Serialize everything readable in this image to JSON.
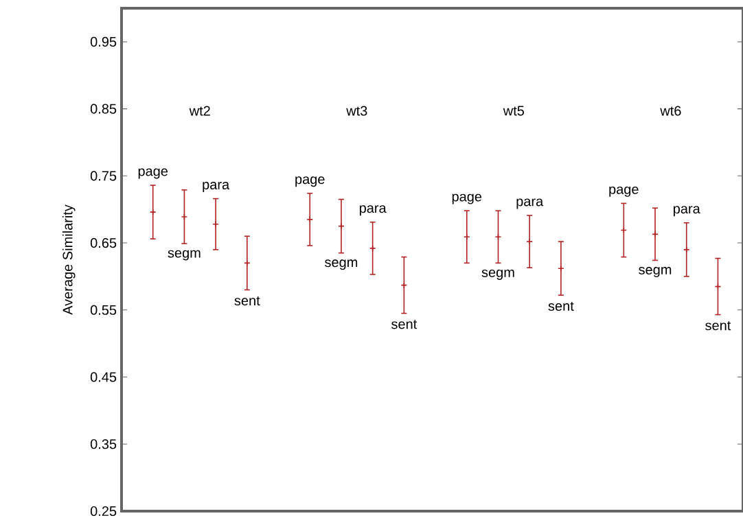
{
  "chart_data": {
    "type": "scatter",
    "ylabel": "Average Similarity",
    "categories": [
      "wt2",
      "wt3",
      "wt5",
      "wt6"
    ],
    "ylim": [
      0.25,
      1.0
    ],
    "yticks": [
      0.25,
      0.35,
      0.45,
      0.55,
      0.65,
      0.75,
      0.85,
      0.95
    ],
    "marker": "cross",
    "legend": false,
    "series": [
      {
        "name": "page",
        "color": "#b22222",
        "values": [
          0.696,
          0.685,
          0.659,
          0.669
        ],
        "errors": [
          0.04,
          0.039,
          0.039,
          0.04
        ]
      },
      {
        "name": "segm",
        "color": "#b22222",
        "values": [
          0.689,
          0.675,
          0.659,
          0.663
        ],
        "errors": [
          0.04,
          0.04,
          0.039,
          0.039
        ]
      },
      {
        "name": "para",
        "color": "#b22222",
        "values": [
          0.678,
          0.642,
          0.652,
          0.64
        ],
        "errors": [
          0.038,
          0.039,
          0.039,
          0.04
        ]
      },
      {
        "name": "sent",
        "color": "#b22222",
        "values": [
          0.62,
          0.587,
          0.612,
          0.585
        ],
        "errors": [
          0.04,
          0.042,
          0.04,
          0.042
        ]
      }
    ]
  }
}
